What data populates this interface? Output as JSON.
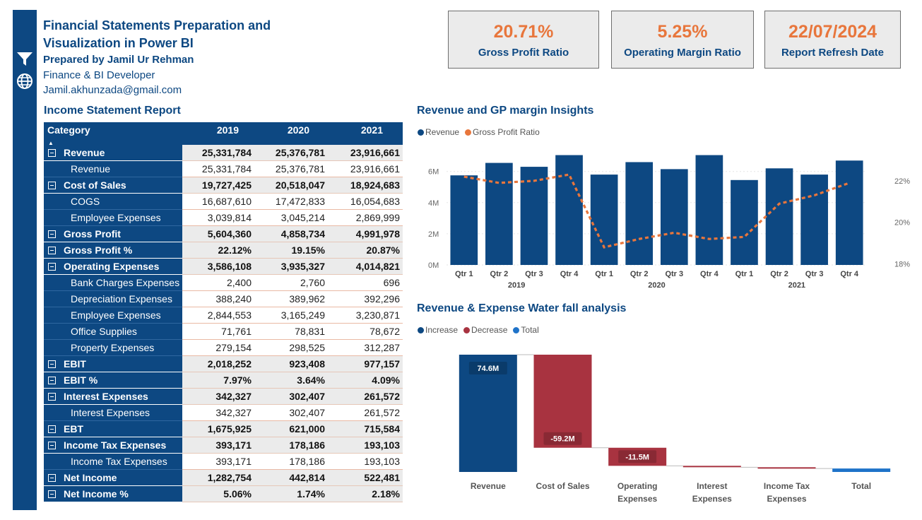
{
  "header": {
    "title_line1": "Financial Statements Preparation and",
    "title_line2": "Visualization in Power BI",
    "prepared_by": "Prepared by Jamil Ur Rehman",
    "role": "Finance & BI Developer",
    "email": "Jamil.akhunzada@gmail.com"
  },
  "sidebar": {
    "icons": [
      "filter-icon",
      "globe-icon"
    ]
  },
  "kpis": [
    {
      "value": "20.71%",
      "label": "Gross Profit Ratio"
    },
    {
      "value": "5.25%",
      "label": "Operating Margin Ratio"
    },
    {
      "value": "22/07/2024",
      "label": "Report Refresh Date"
    }
  ],
  "income_statement": {
    "title": "Income Statement Report",
    "columns": [
      "Category",
      "2019",
      "2020",
      "2021"
    ],
    "rows": [
      {
        "type": "parent",
        "label": "Revenue",
        "values": [
          "25,331,784",
          "25,376,781",
          "23,916,661"
        ]
      },
      {
        "type": "child",
        "label": "Revenue",
        "values": [
          "25,331,784",
          "25,376,781",
          "23,916,661"
        ]
      },
      {
        "type": "parent",
        "label": "Cost of Sales",
        "values": [
          "19,727,425",
          "20,518,047",
          "18,924,683"
        ]
      },
      {
        "type": "child",
        "label": "COGS",
        "values": [
          "16,687,610",
          "17,472,833",
          "16,054,683"
        ]
      },
      {
        "type": "child",
        "label": "Employee Expenses",
        "values": [
          "3,039,814",
          "3,045,214",
          "2,869,999"
        ]
      },
      {
        "type": "parent",
        "label": "Gross Profit",
        "values": [
          "5,604,360",
          "4,858,734",
          "4,991,978"
        ]
      },
      {
        "type": "parent",
        "label": "Gross Profit %",
        "values": [
          "22.12%",
          "19.15%",
          "20.87%"
        ]
      },
      {
        "type": "parent",
        "label": "Operating Expenses",
        "values": [
          "3,586,108",
          "3,935,327",
          "4,014,821"
        ]
      },
      {
        "type": "child",
        "label": "Bank Charges Expenses",
        "values": [
          "2,400",
          "2,760",
          "696"
        ]
      },
      {
        "type": "child",
        "label": "Depreciation Expenses",
        "values": [
          "388,240",
          "389,962",
          "392,296"
        ]
      },
      {
        "type": "child",
        "label": "Employee Expenses",
        "values": [
          "2,844,553",
          "3,165,249",
          "3,230,871"
        ]
      },
      {
        "type": "child",
        "label": "Office Supplies",
        "values": [
          "71,761",
          "78,831",
          "78,672"
        ]
      },
      {
        "type": "child",
        "label": "Property Expenses",
        "values": [
          "279,154",
          "298,525",
          "312,287"
        ]
      },
      {
        "type": "parent",
        "label": "EBIT",
        "values": [
          "2,018,252",
          "923,408",
          "977,157"
        ]
      },
      {
        "type": "parent",
        "label": "EBIT %",
        "values": [
          "7.97%",
          "3.64%",
          "4.09%"
        ]
      },
      {
        "type": "parent",
        "label": "Interest Expenses",
        "values": [
          "342,327",
          "302,407",
          "261,572"
        ]
      },
      {
        "type": "child",
        "label": "Interest Expenses",
        "values": [
          "342,327",
          "302,407",
          "261,572"
        ]
      },
      {
        "type": "parent",
        "label": "EBT",
        "values": [
          "1,675,925",
          "621,000",
          "715,584"
        ]
      },
      {
        "type": "parent",
        "label": "Income Tax Expenses",
        "values": [
          "393,171",
          "178,186",
          "193,103"
        ]
      },
      {
        "type": "child",
        "label": "Income Tax Expenses",
        "values": [
          "393,171",
          "178,186",
          "193,103"
        ]
      },
      {
        "type": "parent",
        "label": "Net Income",
        "values": [
          "1,282,754",
          "442,814",
          "522,481"
        ]
      },
      {
        "type": "parent",
        "label": "Net Income %",
        "values": [
          "5.06%",
          "1.74%",
          "2.18%"
        ]
      }
    ]
  },
  "chart_data": [
    {
      "type": "bar",
      "title": "Revenue and GP margin Insights",
      "legend": [
        "Revenue",
        "Gross Profit Ratio"
      ],
      "categories": [
        "Qtr 1",
        "Qtr 2",
        "Qtr 3",
        "Qtr 4",
        "Qtr 1",
        "Qtr 2",
        "Qtr 3",
        "Qtr 4",
        "Qtr 1",
        "Qtr 2",
        "Qtr 3",
        "Qtr 4"
      ],
      "year_groups": [
        "2019",
        "2020",
        "2021"
      ],
      "y_ticks": [
        "0M",
        "2M",
        "4M",
        "6M"
      ],
      "y2_ticks": [
        "18%",
        "20%",
        "22%"
      ],
      "ylim": [
        0,
        7.8
      ],
      "y2lim": [
        17.95,
        23.8
      ],
      "series": [
        {
          "name": "Revenue",
          "kind": "bar",
          "color": "#0d4882",
          "values": [
            5.75,
            6.55,
            6.3,
            7.05,
            5.8,
            6.6,
            6.15,
            7.05,
            5.45,
            6.2,
            5.8,
            6.7
          ]
        },
        {
          "name": "Gross Profit Ratio",
          "kind": "line",
          "color": "#e8763c",
          "values": [
            22.2,
            21.9,
            22.0,
            22.3,
            18.8,
            19.2,
            19.5,
            19.2,
            19.3,
            20.9,
            21.3,
            21.9
          ]
        }
      ],
      "grid": true
    },
    {
      "type": "waterfall",
      "title": "Revenue & Expense Water fall analysis",
      "legend": [
        {
          "name": "Increase",
          "color": "#0d4882"
        },
        {
          "name": "Decrease",
          "color": "#a83340"
        },
        {
          "name": "Total",
          "color": "#1f73c9"
        }
      ],
      "categories": [
        "Revenue",
        "Cost of Sales",
        "Operating Expenses",
        "Interest Expenses",
        "Income Tax Expenses",
        "Total"
      ],
      "category_lines": [
        [
          "Revenue"
        ],
        [
          "Cost of Sales"
        ],
        [
          "Operating",
          "Expenses"
        ],
        [
          "Interest",
          "Expenses"
        ],
        [
          "Income Tax",
          "Expenses"
        ],
        [
          "Total"
        ]
      ],
      "values": [
        74.6,
        -59.2,
        -11.5,
        -0.9,
        -0.8,
        2.2
      ],
      "data_labels": [
        "74.6M",
        "-59.2M",
        "-11.5M",
        "",
        "",
        ""
      ],
      "ylim": [
        0,
        74.6
      ]
    }
  ]
}
